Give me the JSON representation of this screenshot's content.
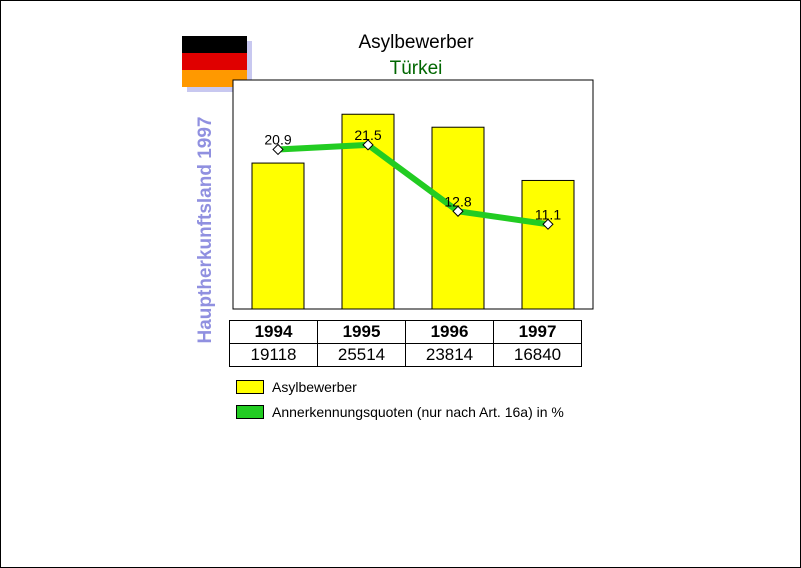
{
  "flag": {
    "colors": [
      "#000000",
      "#e00000",
      "#ff9900"
    ]
  },
  "title": "Asylbewerber",
  "subtitle": "Türkei",
  "side_label": "Hauptherkunftsland 1997",
  "colors": {
    "bar": "#ffff00",
    "line": "#22cc22",
    "subtitle": "#006600",
    "side_label": "#9090e0"
  },
  "chart_data": {
    "type": "bar",
    "categories": [
      "1994",
      "1995",
      "1996",
      "1997"
    ],
    "series": [
      {
        "name": "Asylbewerber",
        "kind": "bar",
        "values": [
          19118,
          25514,
          23814,
          16840
        ]
      },
      {
        "name": "Annerkennungsquoten (nur nach Art. 16a) in %",
        "kind": "line",
        "values": [
          20.9,
          21.5,
          12.8,
          11.1
        ]
      }
    ],
    "title": "Asylbewerber",
    "subtitle": "Türkei",
    "ylabel": "",
    "ylim_bar": [
      0,
      30000
    ],
    "ylim_line": [
      0,
      30
    ],
    "grid": false,
    "legend": "bottom"
  },
  "table": {
    "years": [
      "1994",
      "1995",
      "1996",
      "1997"
    ],
    "values": [
      "19118",
      "25514",
      "23814",
      "16840"
    ]
  },
  "legend": [
    {
      "label": "Asylbewerber",
      "color": "#ffff00"
    },
    {
      "label": "Annerkennungsquoten (nur nach Art. 16a) in %",
      "color": "#22cc22"
    }
  ]
}
